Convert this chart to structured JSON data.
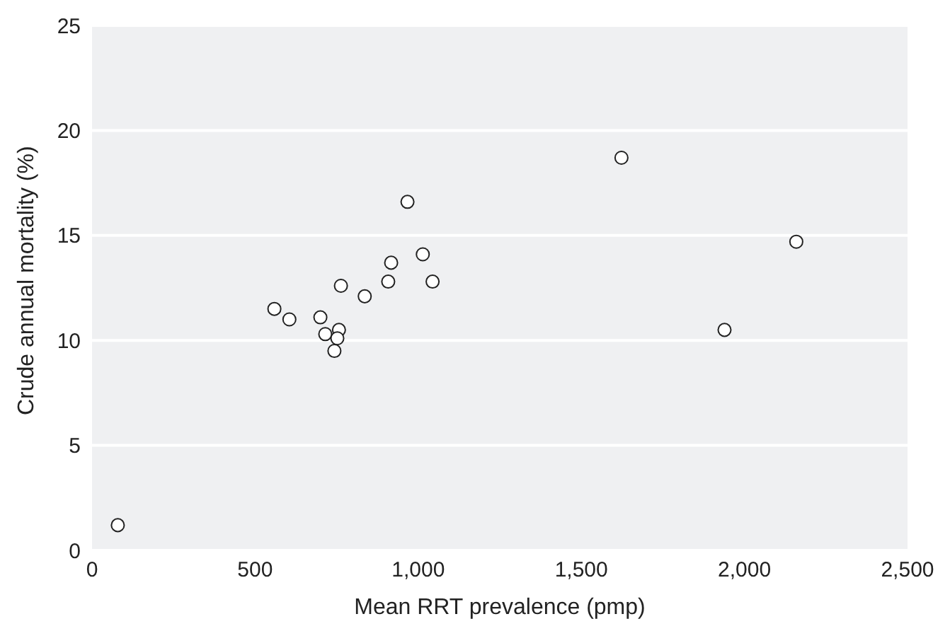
{
  "chart_data": {
    "type": "scatter",
    "xlabel": "Mean RRT prevalence (pmp)",
    "ylabel": "Crude annual mortality (%)",
    "x": [
      79,
      559,
      605,
      700,
      715,
      757,
      752,
      743,
      763,
      836,
      908,
      917,
      967,
      1014,
      1044,
      1623,
      1939,
      2159
    ],
    "values": [
      1.2,
      11.5,
      11.0,
      11.1,
      10.3,
      10.5,
      10.1,
      9.5,
      12.6,
      12.1,
      12.8,
      13.7,
      16.6,
      14.1,
      12.8,
      18.7,
      10.5,
      14.7
    ],
    "color": "#ffffff",
    "marker": "circle",
    "xlim": [
      0,
      2500
    ],
    "xticks": [
      0,
      500,
      {
        "value": 1000,
        "label": "1,000"
      },
      {
        "value": 1500,
        "label": "1,500"
      },
      {
        "value": 2000,
        "label": "2,000"
      },
      {
        "value": 2500,
        "label": "2,500"
      }
    ],
    "ylim": [
      0,
      25
    ],
    "yticks": [
      0,
      5,
      10,
      15,
      20,
      25
    ],
    "grid": "y"
  }
}
